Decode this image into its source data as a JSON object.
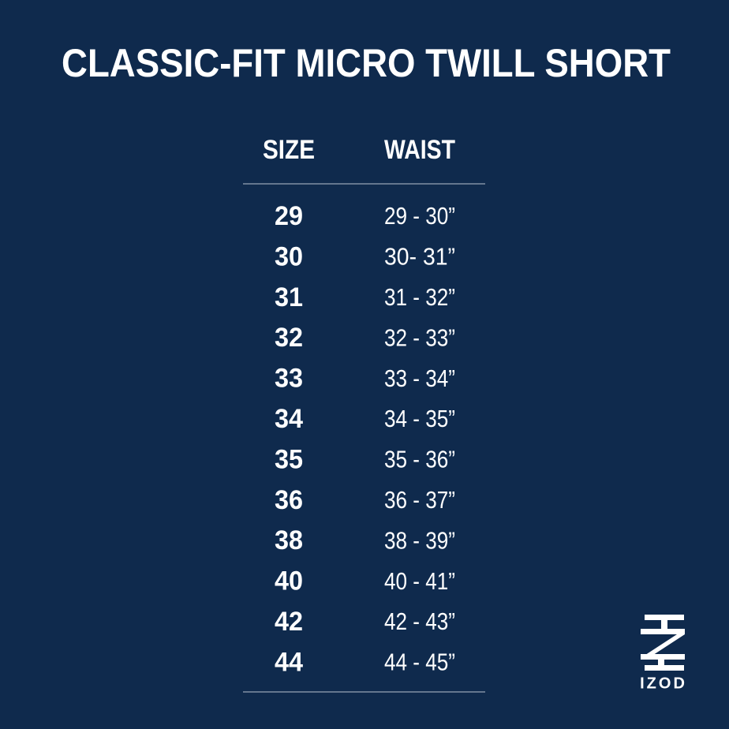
{
  "header": {
    "title": "CLASSIC-FIT MICRO TWILL SHORT"
  },
  "table": {
    "columns": [
      "SIZE",
      "WAIST"
    ],
    "rows": [
      [
        "29",
        "29 - 30”"
      ],
      [
        "30",
        "30- 31”"
      ],
      [
        "31",
        "31 - 32”"
      ],
      [
        "32",
        "32 - 33”"
      ],
      [
        "33",
        "33 - 34”"
      ],
      [
        "34",
        "34 - 35”"
      ],
      [
        "35",
        "35 - 36”"
      ],
      [
        "36",
        "36 - 37”"
      ],
      [
        "38",
        "38 - 39”"
      ],
      [
        "40",
        "40 - 41”"
      ],
      [
        "42",
        "42 - 43”"
      ],
      [
        "44",
        "44 - 45”"
      ]
    ]
  },
  "brand": {
    "name": "IZOD"
  }
}
